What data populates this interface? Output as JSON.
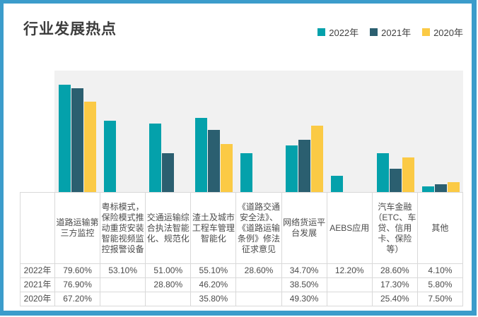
{
  "title": "行业发展热点",
  "colors": {
    "frame_border": "#3B9CCB",
    "plot_background": "#F1F1F1",
    "axis_line": "#D9D9D9",
    "table_border": "#D9D9D9",
    "text": "#4b4b4b",
    "title_text": "#3d3d3d"
  },
  "legend": [
    {
      "label": "2022年",
      "color": "#04A1AB"
    },
    {
      "label": "2021年",
      "color": "#2B5F70"
    },
    {
      "label": "2020年",
      "color": "#FBCA45"
    }
  ],
  "chart_data": {
    "type": "bar",
    "title": "行业发展热点",
    "categories": [
      "道路运输第三方监控",
      "粤标模式，保险模式推动重货安装智能视频监控报警设备",
      "交通运输综合执法智能化、规范化",
      "渣土及城市工程车管理智能化",
      "《道路交通安全法》、《道路运输条例》修法征求意见",
      "网络货运平台发展",
      "AEBS应用",
      "汽车金融（ETC、车贷、信用卡、保险等）",
      "其他"
    ],
    "series": [
      {
        "name": "2022年",
        "color": "#04A1AB",
        "values": [
          79.6,
          53.1,
          51.0,
          55.1,
          28.6,
          34.7,
          12.2,
          28.6,
          4.1
        ]
      },
      {
        "name": "2021年",
        "color": "#2B5F70",
        "values": [
          76.9,
          null,
          28.8,
          46.2,
          null,
          38.5,
          null,
          17.3,
          5.8
        ]
      },
      {
        "name": "2020年",
        "color": "#FBCA45",
        "values": [
          67.2,
          null,
          null,
          35.8,
          null,
          49.3,
          null,
          25.4,
          7.5
        ]
      }
    ],
    "ylim": [
      0,
      90
    ],
    "xlabel": "",
    "ylabel": "",
    "grid": false,
    "legend_position": "top-right",
    "value_format": "percent",
    "yaxis_labels_visible": false
  },
  "table": {
    "row_labels": [
      "2022年",
      "2021年",
      "2020年"
    ],
    "rows": [
      [
        "79.60%",
        "53.10%",
        "51.00%",
        "55.10%",
        "28.60%",
        "34.70%",
        "12.20%",
        "28.60%",
        "4.10%"
      ],
      [
        "76.90%",
        "",
        "28.80%",
        "46.20%",
        "",
        "38.50%",
        "",
        "17.30%",
        "5.80%"
      ],
      [
        "67.20%",
        "",
        "",
        "35.80%",
        "",
        "49.30%",
        "",
        "25.40%",
        "7.50%"
      ]
    ]
  }
}
